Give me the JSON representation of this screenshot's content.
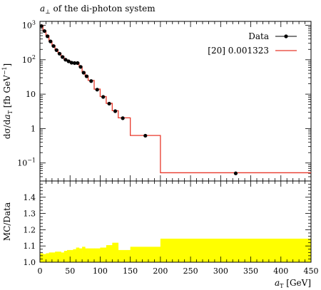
{
  "chart_data": [
    {
      "type": "line",
      "title": "a⊥ of the di-photon system",
      "title_parts": {
        "symbol": "a",
        "sub": "⊥",
        "rest": " of the di-photon system"
      },
      "xlabel": "",
      "ylabel": "dσ/da_T [fb GeV⁻¹]",
      "ylabel_parts": {
        "pre": "dσ/d",
        "a": "a",
        "sub": "T",
        "post": " [fb GeV",
        "sup": "−1",
        "end": "]"
      },
      "yscale": "log",
      "xlim": [
        0,
        450
      ],
      "ylim": [
        0.03,
        1300
      ],
      "x_ticks": [
        0,
        50,
        100,
        150,
        200,
        250,
        300,
        350,
        400,
        450
      ],
      "y_ticks": [
        {
          "value": 1000,
          "base": "10",
          "exp": "3"
        },
        {
          "value": 100,
          "base": "10",
          "exp": "2"
        },
        {
          "value": 10,
          "base": "10",
          "exp": ""
        },
        {
          "value": 1,
          "base": "1",
          "exp": ""
        },
        {
          "value": 0.1,
          "base": "10",
          "exp": "−1"
        }
      ],
      "legend_position": "top-right",
      "series": [
        {
          "name": "Data",
          "color": "#000000",
          "style": "points",
          "x": [
            2.5,
            7.5,
            12.5,
            17.5,
            22.5,
            27.5,
            32.5,
            37.5,
            42.5,
            47.5,
            52.5,
            57.5,
            62.5,
            67.5,
            72.5,
            77.5,
            85,
            95,
            105,
            115,
            125,
            137.5,
            175,
            325
          ],
          "y": [
            950,
            680,
            480,
            340,
            250,
            190,
            150,
            120,
            100,
            90,
            82,
            80,
            80,
            62,
            42,
            33,
            24,
            13.5,
            8.3,
            5.3,
            3.2,
            2.0,
            0.62,
            0.05
          ]
        },
        {
          "name": "[20] 0.001323",
          "color": "#e8392b",
          "style": "step",
          "edges": [
            0,
            5,
            10,
            15,
            20,
            25,
            30,
            35,
            40,
            45,
            50,
            55,
            60,
            65,
            70,
            75,
            80,
            90,
            100,
            110,
            120,
            130,
            145,
            150,
            200,
            450
          ],
          "y": [
            1000,
            700,
            500,
            350,
            260,
            195,
            155,
            125,
            102,
            92,
            84,
            81,
            82,
            64,
            44,
            34,
            25,
            14,
            8.5,
            5.4,
            3.3,
            2.05,
            2.05,
            0.63,
            0.052
          ]
        }
      ]
    },
    {
      "type": "area",
      "ylabel": "MC/Data",
      "xlabel": "a_T [GeV]",
      "xlabel_parts": {
        "a": "a",
        "sub": "T",
        "post": " [GeV]"
      },
      "xlim": [
        0,
        450
      ],
      "ylim": [
        1.0,
        1.5
      ],
      "x_ticks": [
        0,
        50,
        100,
        150,
        200,
        250,
        300,
        350,
        400,
        450
      ],
      "y_ticks": [
        "1.0",
        "1.1",
        "1.2",
        "1.3",
        "1.4"
      ],
      "band_color": "#ffff00",
      "edges": [
        0,
        5,
        10,
        15,
        20,
        25,
        30,
        35,
        40,
        45,
        50,
        55,
        60,
        65,
        70,
        75,
        80,
        90,
        100,
        110,
        120,
        130,
        145,
        150,
        200,
        450
      ],
      "values": [
        1.055,
        1.05,
        1.055,
        1.06,
        1.06,
        1.065,
        1.065,
        1.06,
        1.07,
        1.075,
        1.075,
        1.08,
        1.09,
        1.085,
        1.095,
        1.085,
        1.085,
        1.085,
        1.09,
        1.105,
        1.12,
        1.075,
        1.075,
        1.095,
        1.145
      ]
    }
  ]
}
